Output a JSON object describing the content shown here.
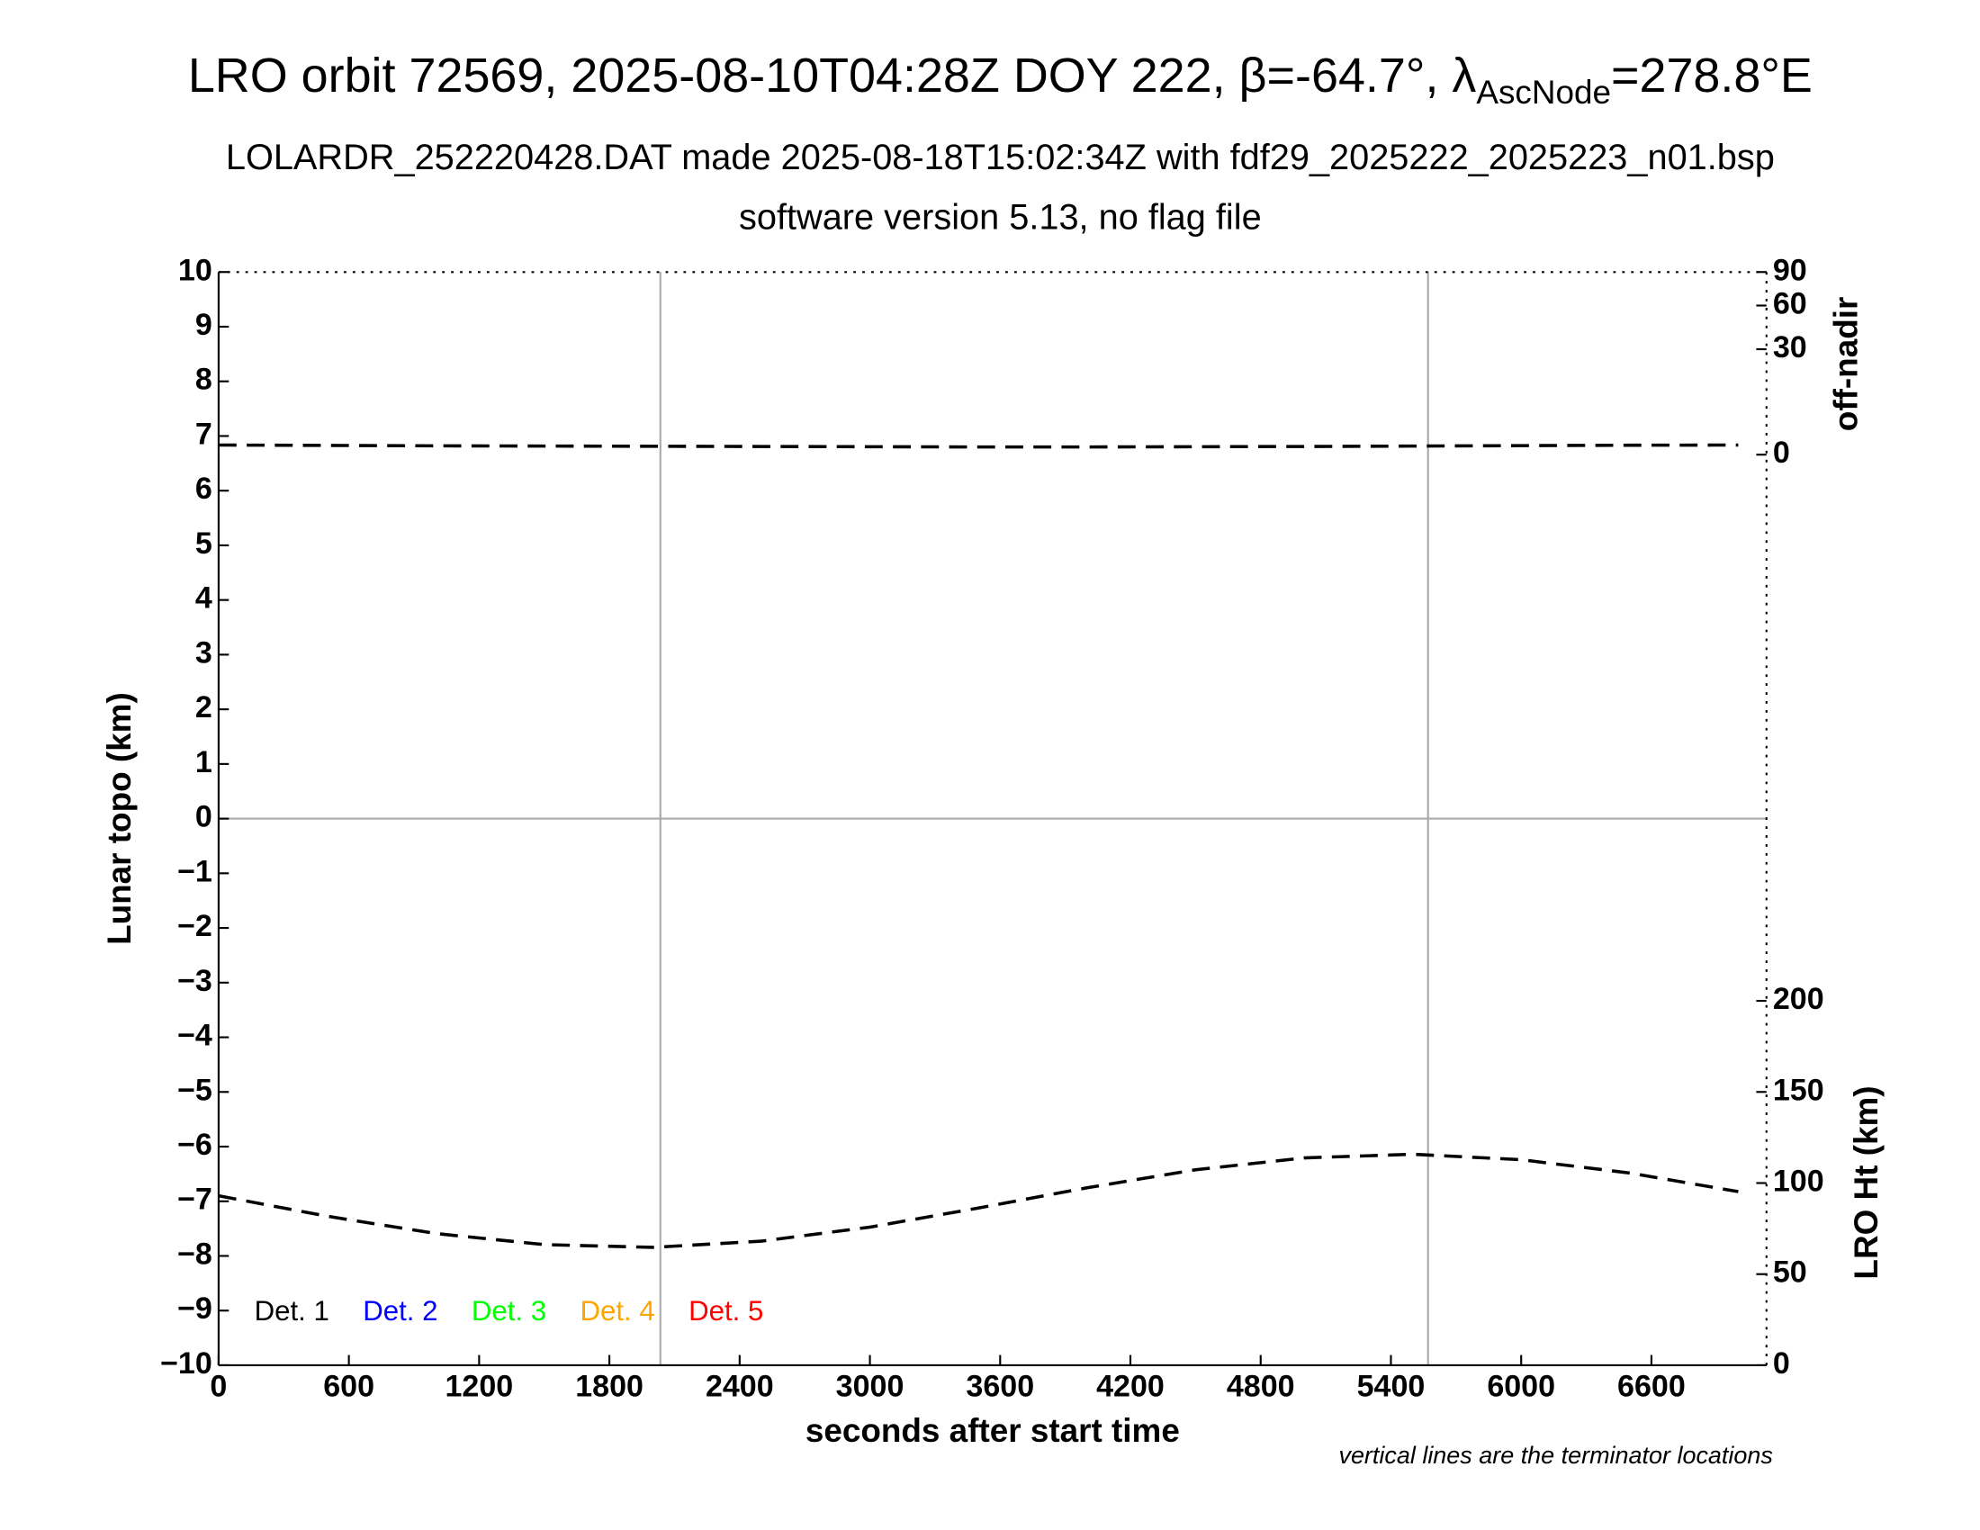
{
  "chart_data": {
    "type": "line",
    "title_parts": [
      "LRO orbit 72569, 2025-08-10T04:28Z DOY 222, β=-64.7°, λ",
      "AscNode",
      "=278.8°E"
    ],
    "subtitle": "LOLARDR_252220428.DAT made 2025-08-18T15:02:34Z with fdf29_2025222_2025223_n01.bsp",
    "subtitle2": "software version 5.13, no flag file",
    "x_label": "seconds after start time",
    "y_label": "Lunar topo (km)",
    "y2_label": "off-nadir",
    "y3_label": "LRO Ht (km)",
    "note": "vertical lines are the terminator locations",
    "xlim": [
      0,
      7130
    ],
    "xticks": [
      0,
      600,
      1200,
      1800,
      2400,
      3000,
      3600,
      4200,
      4800,
      5400,
      6000,
      6600
    ],
    "ylim": [
      -10,
      10
    ],
    "yticks": [
      {
        "value": -10,
        "label": "−10"
      },
      {
        "value": -9,
        "label": "−9"
      },
      {
        "value": -8,
        "label": "−8"
      },
      {
        "value": -7,
        "label": "−7"
      },
      {
        "value": -6,
        "label": "−6"
      },
      {
        "value": -5,
        "label": "−5"
      },
      {
        "value": -4,
        "label": "−4"
      },
      {
        "value": -3,
        "label": "−3"
      },
      {
        "value": -2,
        "label": "−2"
      },
      {
        "value": -1,
        "label": "−1"
      },
      0,
      1,
      2,
      3,
      4,
      5,
      6,
      7,
      8,
      9,
      10
    ],
    "y2lim": [
      0,
      90
    ],
    "y2scale": "sqrt",
    "y2ticks": [
      0,
      30,
      60,
      90
    ],
    "y3lim": [
      0,
      600
    ],
    "y3ticks": [
      0,
      50,
      100,
      150,
      200
    ],
    "zero_line": true,
    "terminators": [
      2035,
      5571
    ],
    "x": [
      0,
      500,
      1000,
      1500,
      2000,
      2500,
      3000,
      3500,
      4000,
      4500,
      5000,
      5500,
      6000,
      6500,
      7000
    ],
    "series": [
      {
        "name": "off-nadir",
        "axis": "y2",
        "color": "#000000",
        "values": [
          0.25,
          0.23,
          0.21,
          0.2,
          0.19,
          0.18,
          0.17,
          0.16,
          0.16,
          0.17,
          0.18,
          0.2,
          0.22,
          0.24,
          0.25
        ]
      },
      {
        "name": "LRO Ht",
        "axis": "y3",
        "color": "#000000",
        "values": [
          93.0,
          81.8,
          72.3,
          66.2,
          64.7,
          68.1,
          75.8,
          86.3,
          97.4,
          107.3,
          113.8,
          115.8,
          112.8,
          105.5,
          95.3
        ]
      }
    ],
    "detectors": [
      {
        "name": "Det. 1",
        "color": "#000000"
      },
      {
        "name": "Det. 2",
        "color": "#0000ff"
      },
      {
        "name": "Det. 3",
        "color": "#00ff00"
      },
      {
        "name": "Det. 4",
        "color": "#ffa500"
      },
      {
        "name": "Det. 5",
        "color": "#ff0000"
      }
    ]
  }
}
